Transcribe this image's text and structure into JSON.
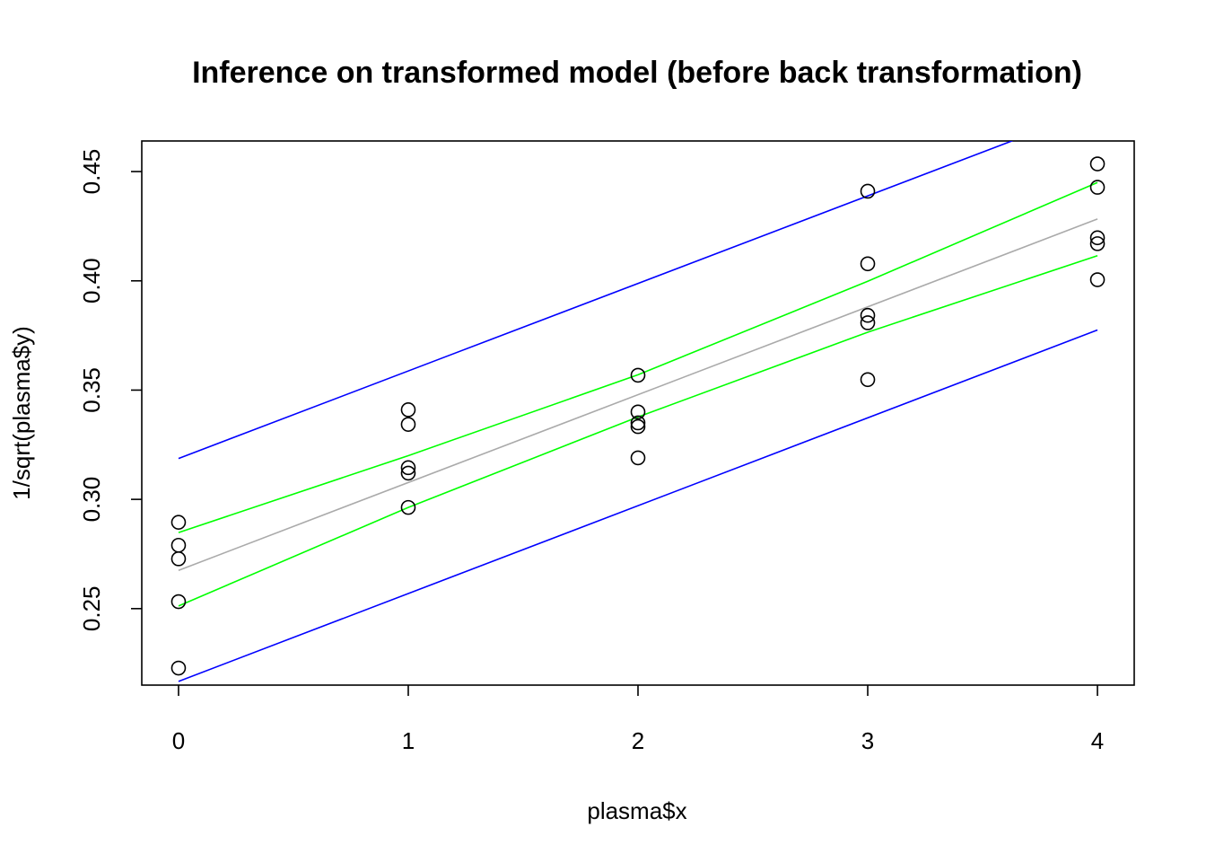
{
  "chart_data": {
    "type": "scatter",
    "title": "Inference on transformed model (before back transformation)",
    "xlabel": "plasma$x",
    "ylabel": "1/sqrt(plasma$y)",
    "xlim": [
      -0.16,
      4.16
    ],
    "ylim": [
      0.215,
      0.464
    ],
    "x_ticks": [
      0,
      1,
      2,
      3,
      4
    ],
    "x_tick_labels": [
      "0",
      "1",
      "2",
      "3",
      "4"
    ],
    "y_ticks": [
      0.25,
      0.3,
      0.35,
      0.4,
      0.45
    ],
    "y_tick_labels": [
      "0.25",
      "0.30",
      "0.35",
      "0.40",
      "0.45"
    ],
    "grid": false,
    "legend": "none",
    "points": {
      "x": [
        0,
        0,
        0,
        0,
        0,
        1,
        1,
        1,
        1,
        1,
        2,
        2,
        2,
        2,
        2,
        3,
        3,
        3,
        3,
        3,
        4,
        4,
        4,
        4,
        4
      ],
      "y": [
        0.2895,
        0.279,
        0.2728,
        0.2532,
        0.2228,
        0.341,
        0.3343,
        0.3145,
        0.312,
        0.2963,
        0.3568,
        0.34,
        0.335,
        0.3333,
        0.319,
        0.441,
        0.4078,
        0.3842,
        0.3808,
        0.3548,
        0.4535,
        0.4428,
        0.4197,
        0.417,
        0.4005
      ]
    },
    "lines": [
      {
        "role": "fit",
        "color": "#aaaaaa",
        "x": [
          0,
          4
        ],
        "y": [
          0.2675,
          0.4283
        ]
      },
      {
        "role": "confidence-upper",
        "color": "#00ff00",
        "x": [
          0,
          1,
          2,
          3,
          4
        ],
        "y": [
          0.2848,
          0.32,
          0.357,
          0.3998,
          0.445
        ]
      },
      {
        "role": "confidence-lower",
        "color": "#00ff00",
        "x": [
          0,
          1,
          2,
          3,
          4
        ],
        "y": [
          0.2512,
          0.2963,
          0.3377,
          0.3765,
          0.4115
        ]
      },
      {
        "role": "prediction-upper",
        "color": "#0000ff",
        "x": [
          0,
          3.63
        ],
        "y": [
          0.3187,
          0.4641
        ]
      },
      {
        "role": "prediction-lower",
        "color": "#0000ff",
        "x": [
          0,
          4
        ],
        "y": [
          0.2167,
          0.3775
        ]
      }
    ]
  }
}
